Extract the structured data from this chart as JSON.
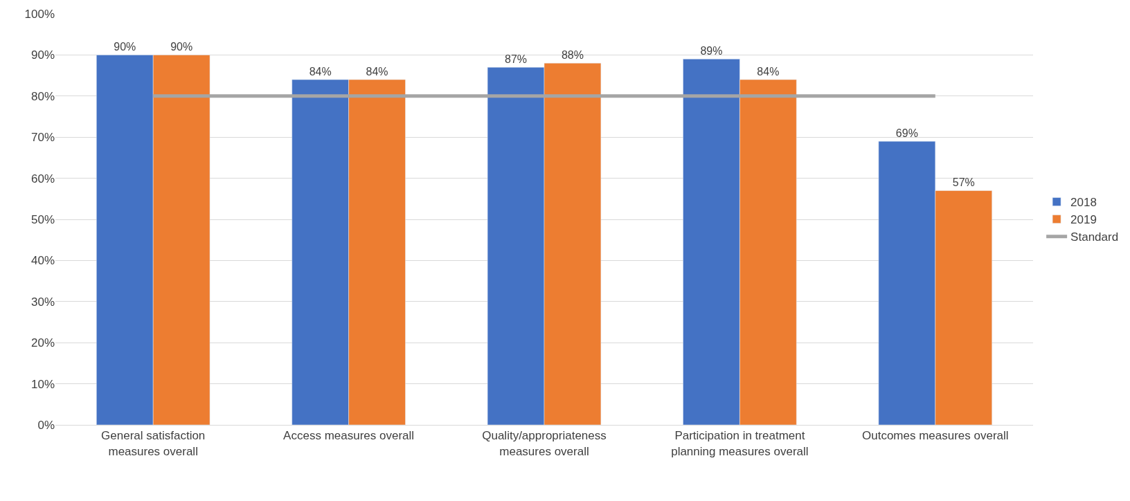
{
  "chart_data": {
    "type": "bar",
    "categories": [
      "General satisfaction measures overall",
      "Access measures overall",
      "Quality/appropriateness measures overall",
      "Participation in treatment planning measures overall",
      "Outcomes measures overall"
    ],
    "series": [
      {
        "name": "2018",
        "color": "#4472c4",
        "values": [
          90,
          84,
          87,
          89,
          69
        ],
        "value_labels": [
          "90%",
          "84%",
          "87%",
          "89%",
          "69%"
        ]
      },
      {
        "name": "2019",
        "color": "#ed7d31",
        "values": [
          90,
          84,
          88,
          84,
          57
        ],
        "value_labels": [
          "90%",
          "84%",
          "88%",
          "84%",
          "57%"
        ]
      },
      {
        "name": "Standard",
        "type": "line",
        "color": "#a5a5a5",
        "values": [
          80,
          80,
          80,
          80,
          80
        ]
      }
    ],
    "ylim": [
      0,
      100
    ],
    "yticks": [
      {
        "value": 0,
        "label": "0%"
      },
      {
        "value": 10,
        "label": "10%"
      },
      {
        "value": 20,
        "label": "20%"
      },
      {
        "value": 30,
        "label": "30%"
      },
      {
        "value": 40,
        "label": "40%"
      },
      {
        "value": 50,
        "label": "50%"
      },
      {
        "value": 60,
        "label": "60%"
      },
      {
        "value": 70,
        "label": "70%"
      },
      {
        "value": 80,
        "label": "80%"
      },
      {
        "value": 90,
        "label": "90%"
      },
      {
        "value": 100,
        "label": "100%"
      }
    ],
    "grid": "y",
    "legend": "right"
  }
}
